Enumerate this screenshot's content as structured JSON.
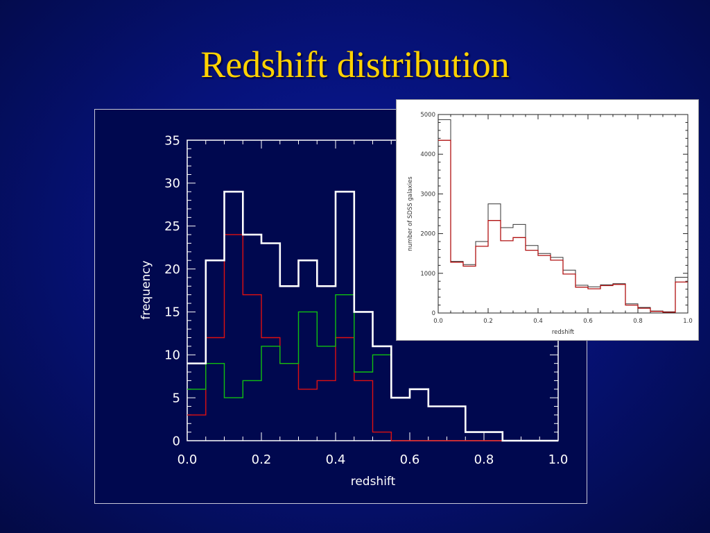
{
  "slide": {
    "title": "Redshift distribution"
  },
  "chart_data": [
    {
      "type": "step",
      "xlabel": "redshift",
      "ylabel": "frequency",
      "xlim": [
        0.0,
        1.0
      ],
      "ylim": [
        0,
        35
      ],
      "xticks": [
        "0.0",
        "0.2",
        "0.4",
        "0.6",
        "0.8",
        "1.0"
      ],
      "yticks": [
        "0",
        "5",
        "10",
        "15",
        "20",
        "25",
        "30",
        "35"
      ],
      "xtick_values": [
        0.0,
        0.2,
        0.4,
        0.6,
        0.8,
        1.0
      ],
      "ytick_values": [
        0,
        5,
        10,
        15,
        20,
        25,
        30,
        35
      ],
      "bin_edges": [
        0.0,
        0.05,
        0.1,
        0.15,
        0.2,
        0.25,
        0.3,
        0.35,
        0.4,
        0.45,
        0.5,
        0.55,
        0.6,
        0.65,
        0.7,
        0.75,
        0.8,
        0.85,
        0.9,
        0.95,
        1.0
      ],
      "series": [
        {
          "color": "#ffffff",
          "values": [
            9,
            21,
            29,
            24,
            23,
            18,
            21,
            18,
            29,
            15,
            11,
            5,
            6,
            4,
            4,
            1,
            1,
            0,
            0,
            0
          ]
        },
        {
          "color": "#e01010",
          "values": [
            3,
            12,
            24,
            17,
            12,
            9,
            6,
            7,
            12,
            7,
            1,
            0,
            0,
            0,
            0,
            0,
            0,
            0,
            0,
            0
          ]
        },
        {
          "color": "#10c010",
          "values": [
            6,
            9,
            5,
            7,
            11,
            9,
            15,
            11,
            17,
            8,
            10,
            5,
            6,
            4,
            4,
            1,
            1,
            0,
            0,
            0
          ]
        }
      ]
    },
    {
      "type": "step",
      "xlabel": "redshift",
      "ylabel": "number of SDSS galaxies",
      "xlim": [
        0.0,
        1.0
      ],
      "ylim": [
        0,
        5000
      ],
      "xticks": [
        "0.0",
        "0.2",
        "0.4",
        "0.6",
        "0.8",
        "1.0"
      ],
      "yticks": [
        "0",
        "1000",
        "2000",
        "3000",
        "4000",
        "5000"
      ],
      "xtick_values": [
        0.0,
        0.2,
        0.4,
        0.6,
        0.8,
        1.0
      ],
      "ytick_values": [
        0,
        1000,
        2000,
        3000,
        4000,
        5000
      ],
      "bin_edges": [
        0.0,
        0.05,
        0.1,
        0.15,
        0.2,
        0.25,
        0.3,
        0.35,
        0.4,
        0.45,
        0.5,
        0.55,
        0.6,
        0.65,
        0.7,
        0.75,
        0.8,
        0.85,
        0.9,
        0.95,
        1.0
      ],
      "series": [
        {
          "color": "#333333",
          "values": [
            4870,
            1300,
            1220,
            1800,
            2750,
            2150,
            2230,
            1700,
            1500,
            1400,
            1080,
            700,
            660,
            710,
            740,
            230,
            140,
            50,
            30,
            900
          ]
        },
        {
          "color": "#b01010",
          "values": [
            4350,
            1280,
            1180,
            1680,
            2330,
            1820,
            1900,
            1580,
            1450,
            1330,
            980,
            650,
            610,
            690,
            720,
            200,
            120,
            40,
            20,
            780
          ]
        }
      ]
    }
  ]
}
